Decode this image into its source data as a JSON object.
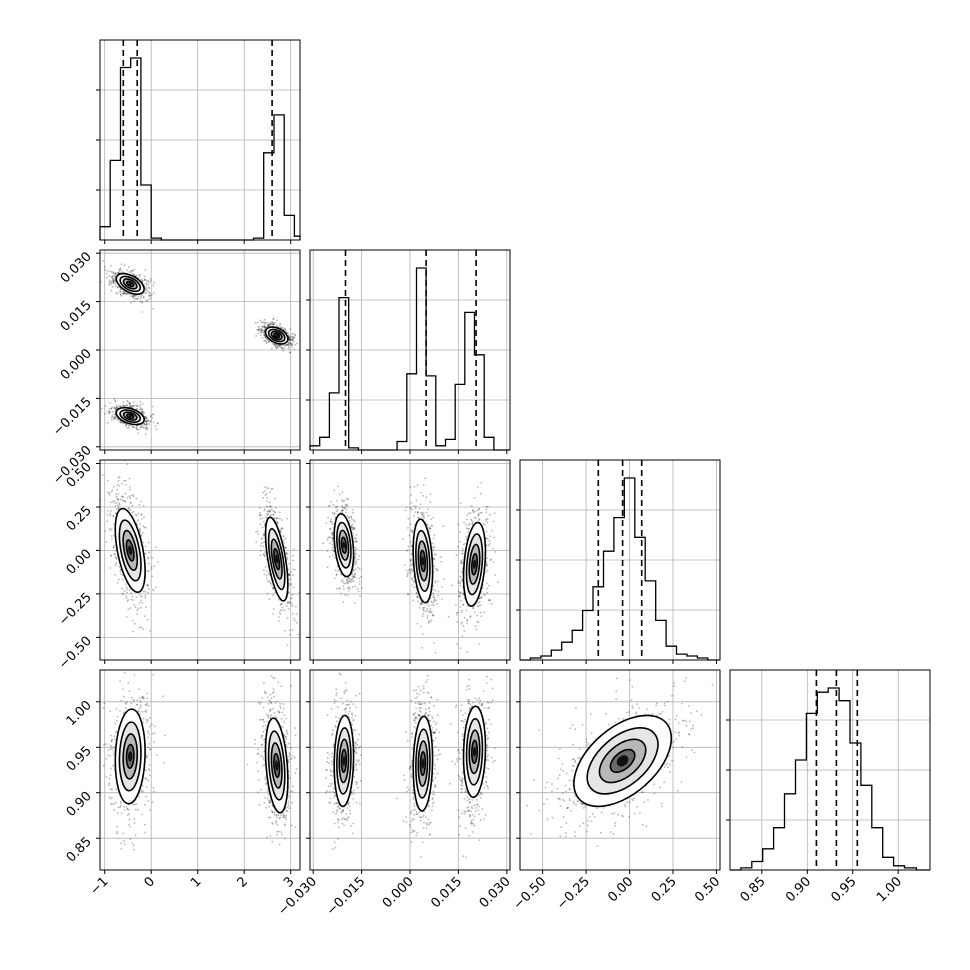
{
  "chart_data": {
    "type": "corner",
    "params": [
      {
        "range": [
          -1.1,
          3.2
        ],
        "ticks": [
          -1,
          0,
          1,
          2,
          3
        ],
        "tick_labels": [
          "−1",
          "0",
          "1",
          "2",
          "3"
        ],
        "modes": [
          {
            "center": -0.45,
            "sd": 0.16,
            "weight": 0.66
          },
          {
            "center": 2.68,
            "sd": 0.12,
            "weight": 0.34
          }
        ],
        "hist_bins": {
          "edges": [
            -1.1,
            -0.88,
            -0.66,
            -0.44,
            -0.22,
            0.0,
            0.22,
            0.44,
            0.66,
            0.88,
            1.1,
            1.32,
            1.54,
            1.76,
            1.98,
            2.2,
            2.42,
            2.64,
            2.86,
            3.08,
            3.2
          ],
          "counts": [
            0.07,
            0.42,
            0.91,
            0.96,
            0.29,
            0.01,
            0.0,
            0.0,
            0.0,
            0.0,
            0.0,
            0.0,
            0.0,
            0.0,
            0.0,
            0.01,
            0.46,
            0.66,
            0.13,
            0.02
          ]
        },
        "quantiles": [
          -0.6,
          -0.3,
          2.6
        ]
      },
      {
        "range": [
          -0.031,
          0.031
        ],
        "ticks": [
          -0.03,
          -0.015,
          0.0,
          0.015,
          0.03
        ],
        "tick_labels": [
          "−0.030",
          "−0.015",
          "0.000",
          "0.015",
          "0.030"
        ],
        "modes": [
          {
            "center": -0.0205,
            "sd": 0.0014,
            "weight": 0.34
          },
          {
            "center": 0.004,
            "sd": 0.0013,
            "weight": 0.33
          },
          {
            "center": 0.02,
            "sd": 0.0016,
            "weight": 0.33
          }
        ],
        "hist_bins": {
          "edges": [
            -0.031,
            -0.028,
            -0.025,
            -0.022,
            -0.019,
            -0.016,
            -0.013,
            -0.01,
            -0.007,
            -0.004,
            -0.001,
            0.002,
            0.005,
            0.008,
            0.011,
            0.014,
            0.017,
            0.02,
            0.023,
            0.026,
            0.031
          ],
          "counts": [
            0.02,
            0.06,
            0.27,
            0.72,
            0.01,
            0.0,
            0.0,
            0.0,
            0.0,
            0.04,
            0.36,
            0.86,
            0.35,
            0.02,
            0.05,
            0.31,
            0.65,
            0.45,
            0.06,
            0.0
          ]
        },
        "quantiles": [
          -0.02,
          0.005,
          0.0205
        ]
      },
      {
        "range": [
          -0.63,
          0.52
        ],
        "ticks": [
          -0.5,
          -0.25,
          0.0,
          0.25,
          0.5
        ],
        "tick_labels": [
          "−0.50",
          "−0.25",
          "0.00",
          "0.25",
          "0.50"
        ],
        "hist_bins": {
          "edges": [
            -0.63,
            -0.57,
            -0.51,
            -0.45,
            -0.39,
            -0.33,
            -0.27,
            -0.21,
            -0.15,
            -0.09,
            -0.03,
            0.03,
            0.09,
            0.15,
            0.21,
            0.27,
            0.33,
            0.39,
            0.45,
            0.52
          ],
          "counts": [
            0.0,
            0.01,
            0.02,
            0.05,
            0.09,
            0.15,
            0.25,
            0.37,
            0.55,
            0.72,
            0.92,
            0.62,
            0.4,
            0.2,
            0.07,
            0.03,
            0.02,
            0.01,
            0.0
          ]
        },
        "quantiles": [
          -0.18,
          -0.04,
          0.07
        ]
      },
      {
        "range": [
          0.815,
          1.035
        ],
        "ticks": [
          0.85,
          0.9,
          0.95,
          1.0
        ],
        "tick_labels": [
          "0.85",
          "0.90",
          "0.95",
          "1.00"
        ],
        "hist_bins": {
          "edges": [
            0.815,
            0.827,
            0.839,
            0.851,
            0.863,
            0.875,
            0.887,
            0.899,
            0.911,
            0.923,
            0.935,
            0.947,
            0.959,
            0.971,
            0.983,
            0.995,
            1.007,
            1.02,
            1.035
          ],
          "counts": [
            0.0,
            0.01,
            0.04,
            0.1,
            0.2,
            0.36,
            0.52,
            0.74,
            0.84,
            0.86,
            0.8,
            0.6,
            0.4,
            0.2,
            0.06,
            0.02,
            0.01,
            0.0
          ]
        },
        "quantiles": [
          0.91,
          0.932,
          0.955
        ]
      }
    ],
    "pair_blobs": {
      "1-0": [
        {
          "cx": -0.45,
          "cy": 0.0205,
          "sx": 0.15,
          "sy": 0.0016,
          "rho": -0.5
        },
        {
          "cx": -0.45,
          "cy": -0.0205,
          "sx": 0.15,
          "sy": 0.0013,
          "rho": -0.4
        },
        {
          "cx": 2.7,
          "cy": 0.0045,
          "sx": 0.12,
          "sy": 0.0013,
          "rho": -0.4
        }
      ],
      "2-0": [
        {
          "cx": -0.45,
          "cy": 0.0,
          "sx": 0.16,
          "sy": 0.12,
          "rho": -0.5
        },
        {
          "cx": 2.7,
          "cy": -0.05,
          "sx": 0.12,
          "sy": 0.12,
          "rho": -0.6
        }
      ],
      "2-1": [
        {
          "cx": -0.0205,
          "cy": 0.03,
          "sx": 0.0015,
          "sy": 0.09,
          "rho": -0.3
        },
        {
          "cx": 0.004,
          "cy": -0.06,
          "sx": 0.0015,
          "sy": 0.12,
          "rho": -0.25
        },
        {
          "cx": 0.02,
          "cy": -0.08,
          "sx": 0.0017,
          "sy": 0.12,
          "rho": 0.3
        }
      ],
      "3-0": [
        {
          "cx": -0.45,
          "cy": 0.94,
          "sx": 0.16,
          "sy": 0.026,
          "rho": 0.1
        },
        {
          "cx": 2.7,
          "cy": 0.93,
          "sx": 0.12,
          "sy": 0.026,
          "rho": -0.3
        }
      ],
      "3-1": [
        {
          "cx": -0.0205,
          "cy": 0.935,
          "sx": 0.0015,
          "sy": 0.025,
          "rho": 0.1
        },
        {
          "cx": 0.004,
          "cy": 0.932,
          "sx": 0.0015,
          "sy": 0.026,
          "rho": 0.1
        },
        {
          "cx": 0.02,
          "cy": 0.945,
          "sx": 0.0017,
          "sy": 0.025,
          "rho": 0.1
        }
      ],
      "3-2": [
        {
          "cx": -0.04,
          "cy": 0.935,
          "sx": 0.14,
          "sy": 0.025,
          "rho": 0.5
        }
      ]
    }
  }
}
